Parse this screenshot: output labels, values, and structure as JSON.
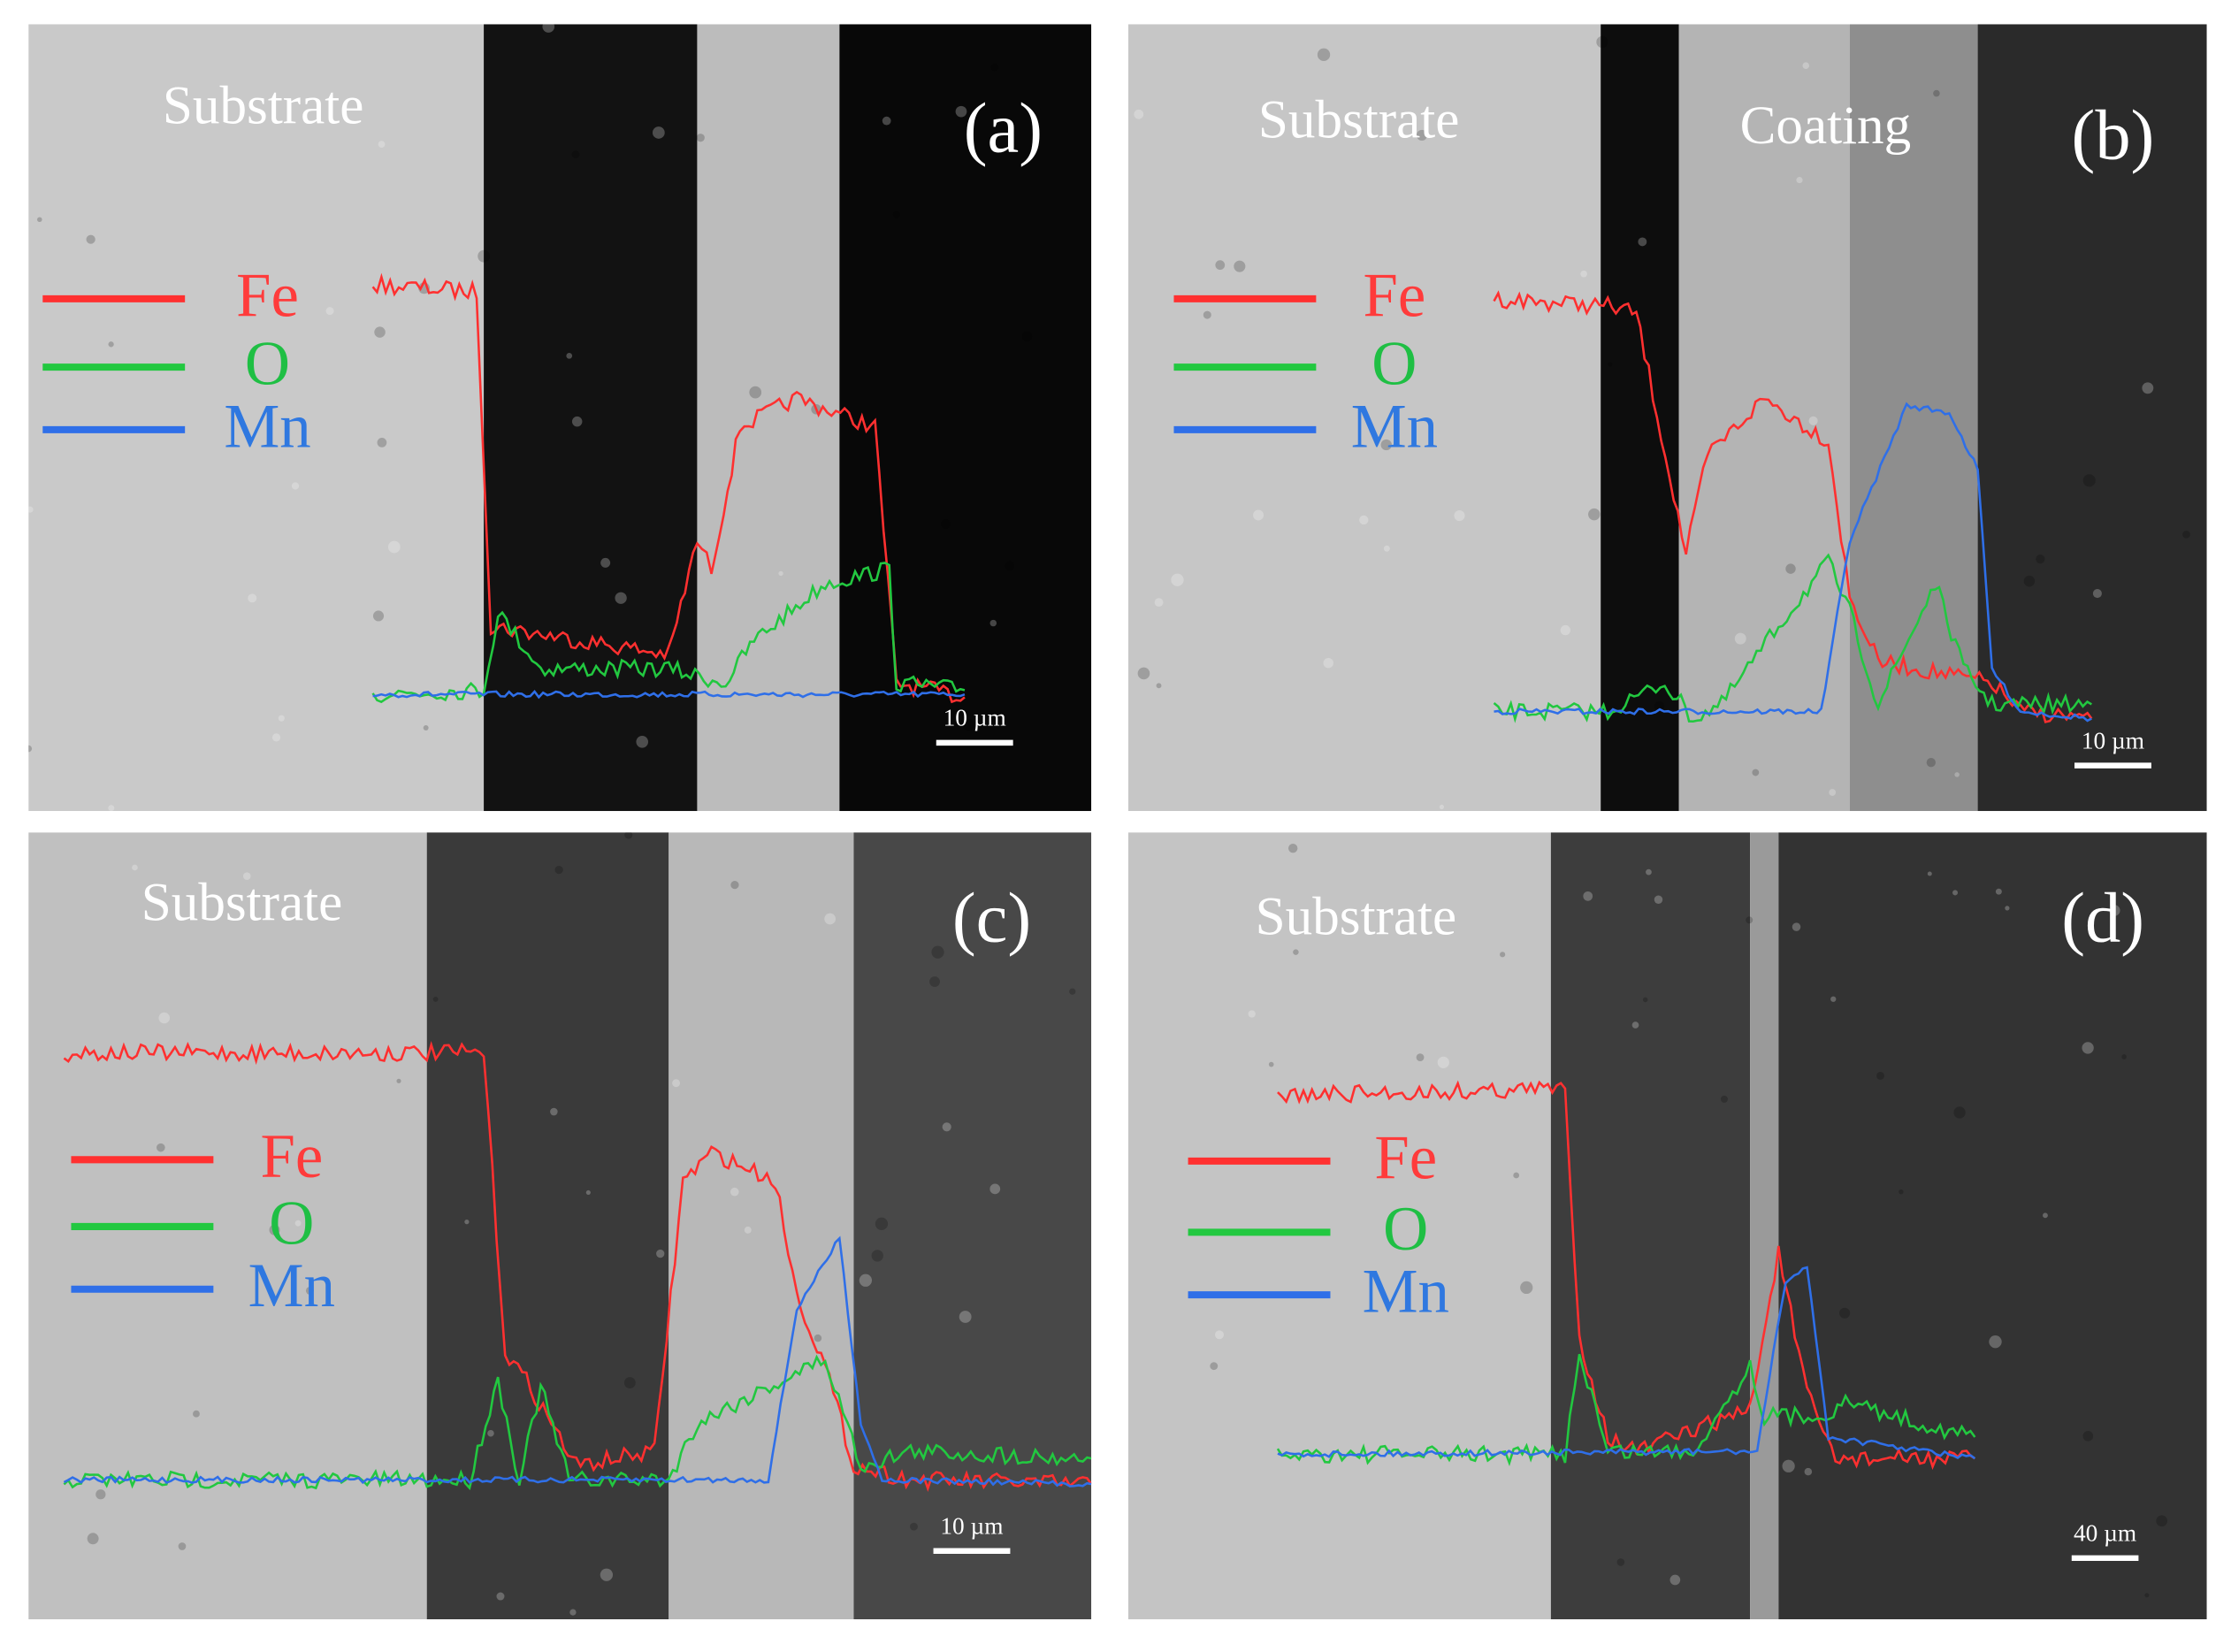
{
  "panels": [
    {
      "label": "(a)",
      "regions": [
        "Substrate"
      ],
      "legend": [
        "Fe",
        "O",
        "Mn"
      ],
      "scale_bar": "10 µm"
    },
    {
      "label": "(b)",
      "regions": [
        "Substrate",
        "Coating"
      ],
      "legend": [
        "Fe",
        "O",
        "Mn"
      ],
      "scale_bar": "10 µm"
    },
    {
      "label": "(c)",
      "regions": [
        "Substrate"
      ],
      "legend": [
        "Fe",
        "O",
        "Mn"
      ],
      "scale_bar": "10 µm"
    },
    {
      "label": "(d)",
      "regions": [
        "Substrate"
      ],
      "legend": [
        "Fe",
        "O",
        "Mn"
      ],
      "scale_bar": "40 µm"
    }
  ]
}
